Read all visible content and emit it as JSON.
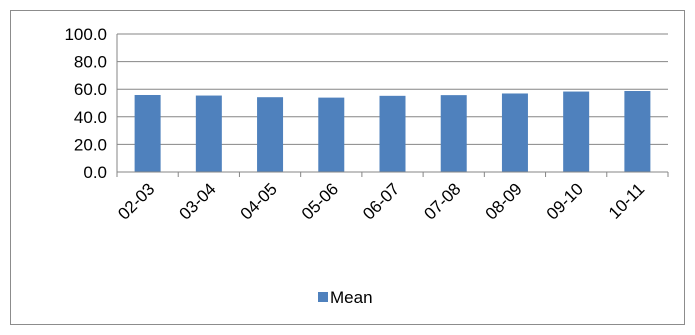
{
  "chart_data": {
    "type": "bar",
    "categories": [
      "02-03",
      "03-04",
      "04-05",
      "05-06",
      "06-07",
      "07-08",
      "08-09",
      "09-10",
      "10-11"
    ],
    "series": [
      {
        "name": "Mean",
        "values": [
          55.8,
          55.4,
          54.2,
          53.9,
          55.2,
          55.7,
          56.9,
          58.3,
          58.7
        ],
        "color": "#4f81bd"
      }
    ],
    "ylim": [
      0,
      100
    ],
    "yticks": [
      "0.0",
      "20.0",
      "40.0",
      "60.0",
      "80.0",
      "100.0"
    ],
    "grid": true,
    "legend_position": "bottom"
  }
}
